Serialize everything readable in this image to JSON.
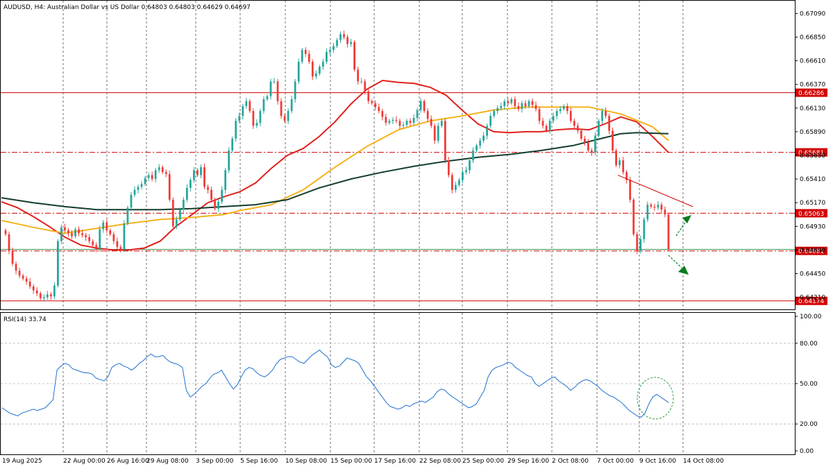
{
  "header": {
    "info": "AUDUSD, H4:  Australian Dollar vs US Dollar  0.64803 0.64803 0.64629 0.64697"
  },
  "rsi_header": {
    "label": "RSI(14) 33.74"
  },
  "colors": {
    "bull": "#26a69a",
    "bear": "#ef3b36",
    "ma_fast": "#e0201c",
    "ma_mid": "#f5b21a",
    "ma_slow": "#123d2c",
    "level": "#d20000",
    "rsi_line": "#1e6fd0",
    "arrow": "#0b7a1e"
  },
  "chart_data": [
    {
      "type": "candlestick",
      "name": "price",
      "y_ticks": [
        "0.67090",
        "0.66850",
        "0.66610",
        "0.66370",
        "0.66130",
        "0.65890",
        "0.65650",
        "0.65410",
        "0.65170",
        "0.64930",
        "0.64690",
        "0.64450",
        "0.64210"
      ],
      "x_ticks": [
        "19 Aug 2025",
        "22 Aug 00:00",
        "26 Aug 16:00",
        "29 Aug 08:00",
        "3 Sep 00:00",
        "5 Sep 16:00",
        "10 Sep 08:00",
        "15 Sep 00:00",
        "17 Sep 16:00",
        "22 Sep 08:00",
        "25 Sep 00:00",
        "29 Sep 16:00",
        "2 Oct 08:00",
        "7 Oct 00:00",
        "9 Oct 16:00",
        "14 Oct 08:00"
      ],
      "ylim": [
        0.6413,
        0.6717
      ],
      "levels": [
        {
          "value": 0.66286,
          "label": "0.66286",
          "style": "solid"
        },
        {
          "value": 0.65681,
          "label": "0.65681",
          "style": "dashdot"
        },
        {
          "value": 0.65063,
          "label": "0.65063",
          "style": "dashdot"
        },
        {
          "value": 0.64681,
          "label": "0.64681",
          "style": "dashdot"
        },
        {
          "value": 0.64174,
          "label": "0.64174",
          "style": "solid"
        }
      ],
      "current_price": 0.64697,
      "trendline": [
        [
          0.6545,
          0.6513
        ]
      ],
      "moving_averages": [
        {
          "key": "ma_fast",
          "points": [
            [
              0,
              0.6518
            ],
            [
              0.02,
              0.6512
            ],
            [
              0.04,
              0.6503
            ],
            [
              0.06,
              0.6493
            ],
            [
              0.08,
              0.6482
            ],
            [
              0.1,
              0.6474
            ],
            [
              0.12,
              0.6471
            ],
            [
              0.14,
              0.6469
            ],
            [
              0.16,
              0.6469
            ],
            [
              0.18,
              0.6471
            ],
            [
              0.2,
              0.6478
            ],
            [
              0.22,
              0.6493
            ],
            [
              0.24,
              0.6505
            ],
            [
              0.26,
              0.6517
            ],
            [
              0.28,
              0.6523
            ],
            [
              0.3,
              0.6528
            ],
            [
              0.32,
              0.6537
            ],
            [
              0.34,
              0.6552
            ],
            [
              0.36,
              0.6565
            ],
            [
              0.38,
              0.6572
            ],
            [
              0.4,
              0.6584
            ],
            [
              0.42,
              0.6599
            ],
            [
              0.44,
              0.6617
            ],
            [
              0.46,
              0.6632
            ],
            [
              0.48,
              0.6641
            ],
            [
              0.5,
              0.6639
            ],
            [
              0.52,
              0.6638
            ],
            [
              0.54,
              0.6634
            ],
            [
              0.56,
              0.6626
            ],
            [
              0.58,
              0.6611
            ],
            [
              0.6,
              0.6597
            ],
            [
              0.62,
              0.6589
            ],
            [
              0.64,
              0.6588
            ],
            [
              0.66,
              0.6589
            ],
            [
              0.68,
              0.6589
            ],
            [
              0.7,
              0.6591
            ],
            [
              0.72,
              0.6592
            ],
            [
              0.74,
              0.6591
            ],
            [
              0.76,
              0.6597
            ],
            [
              0.78,
              0.6604
            ],
            [
              0.8,
              0.6599
            ],
            [
              0.82,
              0.6584
            ],
            [
              0.84,
              0.6568
            ]
          ]
        },
        {
          "key": "ma_mid",
          "points": [
            [
              0,
              0.6499
            ],
            [
              0.04,
              0.6492
            ],
            [
              0.08,
              0.6486
            ],
            [
              0.12,
              0.6491
            ],
            [
              0.16,
              0.6496
            ],
            [
              0.2,
              0.65
            ],
            [
              0.24,
              0.6502
            ],
            [
              0.28,
              0.6505
            ],
            [
              0.3,
              0.6509
            ],
            [
              0.34,
              0.6515
            ],
            [
              0.38,
              0.653
            ],
            [
              0.42,
              0.6553
            ],
            [
              0.46,
              0.6574
            ],
            [
              0.5,
              0.6591
            ],
            [
              0.54,
              0.66
            ],
            [
              0.58,
              0.6605
            ],
            [
              0.62,
              0.6611
            ],
            [
              0.66,
              0.6614
            ],
            [
              0.7,
              0.6614
            ],
            [
              0.74,
              0.6614
            ],
            [
              0.78,
              0.6607
            ],
            [
              0.82,
              0.6594
            ],
            [
              0.84,
              0.658
            ]
          ]
        },
        {
          "key": "ma_slow",
          "points": [
            [
              0,
              0.6522
            ],
            [
              0.04,
              0.6517
            ],
            [
              0.08,
              0.6513
            ],
            [
              0.12,
              0.651
            ],
            [
              0.16,
              0.651
            ],
            [
              0.2,
              0.651
            ],
            [
              0.24,
              0.6511
            ],
            [
              0.28,
              0.6513
            ],
            [
              0.32,
              0.6515
            ],
            [
              0.36,
              0.652
            ],
            [
              0.4,
              0.6532
            ],
            [
              0.44,
              0.6541
            ],
            [
              0.48,
              0.6548
            ],
            [
              0.52,
              0.6554
            ],
            [
              0.56,
              0.6559
            ],
            [
              0.6,
              0.6563
            ],
            [
              0.64,
              0.6566
            ],
            [
              0.68,
              0.657
            ],
            [
              0.72,
              0.6575
            ],
            [
              0.76,
              0.6583
            ],
            [
              0.78,
              0.6587
            ],
            [
              0.8,
              0.6588
            ],
            [
              0.84,
              0.6587
            ]
          ]
        }
      ],
      "candles_ohlc": [
        0.6485,
        0.6468,
        0.6455,
        0.6448,
        0.6443,
        0.644,
        0.6437,
        0.6432,
        0.6428,
        0.6425,
        0.642,
        0.6421,
        0.6424,
        0.6422,
        0.6433,
        0.6478,
        0.6492,
        0.6489,
        0.6486,
        0.6483,
        0.649,
        0.6486,
        0.6484,
        0.6482,
        0.6478,
        0.6474,
        0.647,
        0.649,
        0.6497,
        0.6489,
        0.6485,
        0.6478,
        0.6472,
        0.647,
        0.6496,
        0.6512,
        0.6525,
        0.653,
        0.6533,
        0.6536,
        0.6542,
        0.6545,
        0.6541,
        0.655,
        0.6553,
        0.6548,
        0.6546,
        0.652,
        0.6493,
        0.65,
        0.651,
        0.652,
        0.6532,
        0.654,
        0.655,
        0.6545,
        0.6553,
        0.6533,
        0.653,
        0.652,
        0.6511,
        0.6518,
        0.653,
        0.655,
        0.657,
        0.6582,
        0.66,
        0.6605,
        0.6615,
        0.662,
        0.661,
        0.6595,
        0.6598,
        0.661,
        0.6622,
        0.6625,
        0.664,
        0.664,
        0.662,
        0.6605,
        0.66,
        0.661,
        0.6622,
        0.664,
        0.666,
        0.6672,
        0.6668,
        0.666,
        0.6645,
        0.6648,
        0.6655,
        0.666,
        0.667,
        0.6672,
        0.6676,
        0.6682,
        0.6688,
        0.6685,
        0.6678,
        0.668,
        0.6652,
        0.664,
        0.664,
        0.663,
        0.662,
        0.6618,
        0.6614,
        0.661,
        0.6604,
        0.6598,
        0.66,
        0.6601,
        0.66,
        0.6595,
        0.6596,
        0.66,
        0.6598,
        0.6603,
        0.6611,
        0.662,
        0.661,
        0.6602,
        0.6595,
        0.658,
        0.6595,
        0.66,
        0.656,
        0.6545,
        0.653,
        0.6535,
        0.654,
        0.6548,
        0.655,
        0.656,
        0.657,
        0.6575,
        0.658,
        0.6585,
        0.6595,
        0.6605,
        0.661,
        0.6613,
        0.6615,
        0.662,
        0.6618,
        0.6622,
        0.6615,
        0.6612,
        0.6618,
        0.6615,
        0.662,
        0.6616,
        0.6612,
        0.66,
        0.6595,
        0.659,
        0.66,
        0.6605,
        0.661,
        0.6612,
        0.6615,
        0.661,
        0.66,
        0.6595,
        0.659,
        0.6582,
        0.6578,
        0.657,
        0.6568,
        0.6585,
        0.66,
        0.661,
        0.6605,
        0.659,
        0.657,
        0.6555,
        0.656,
        0.6548,
        0.654,
        0.652,
        0.6485,
        0.6468,
        0.648,
        0.65,
        0.6515,
        0.6513,
        0.6512,
        0.6515,
        0.651,
        0.6505,
        0.647
      ]
    },
    {
      "type": "line",
      "name": "rsi",
      "y_ticks": [
        "100.00",
        "80.00",
        "50.00",
        "20.00",
        "0.00"
      ],
      "ylim": [
        0,
        100
      ],
      "values": [
        32,
        30,
        28,
        27,
        26,
        28,
        29,
        30,
        31,
        30,
        31,
        32,
        35,
        38,
        60,
        63,
        65,
        64,
        61,
        60,
        59,
        58,
        58,
        57,
        54,
        53,
        52,
        55,
        62,
        64,
        65,
        63,
        62,
        60,
        62,
        65,
        67,
        70,
        72,
        70,
        70,
        71,
        68,
        66,
        65,
        64,
        62,
        45,
        40,
        42,
        45,
        48,
        50,
        54,
        57,
        58,
        60,
        55,
        50,
        46,
        49,
        55,
        60,
        62,
        61,
        58,
        56,
        55,
        57,
        60,
        65,
        68,
        69,
        70,
        70,
        68,
        66,
        65,
        68,
        71,
        73,
        75,
        72,
        70,
        64,
        62,
        63,
        66,
        69,
        68,
        67,
        65,
        60,
        55,
        52,
        48,
        44,
        40,
        36,
        33,
        32,
        31,
        32,
        34,
        33,
        35,
        36,
        37,
        36,
        38,
        40,
        44,
        46,
        45,
        42,
        40,
        38,
        36,
        34,
        32,
        33,
        35,
        40,
        45,
        55,
        60,
        62,
        63,
        64,
        66,
        65,
        62,
        60,
        58,
        56,
        55,
        50,
        48,
        50,
        52,
        54,
        55,
        52,
        50,
        48,
        45,
        47,
        50,
        52,
        53,
        52,
        50,
        48,
        45,
        43,
        41,
        40,
        38,
        36,
        33,
        30,
        28,
        26,
        25,
        28,
        35,
        40,
        42,
        40,
        38,
        36
      ],
      "annotation": "circle"
    }
  ]
}
